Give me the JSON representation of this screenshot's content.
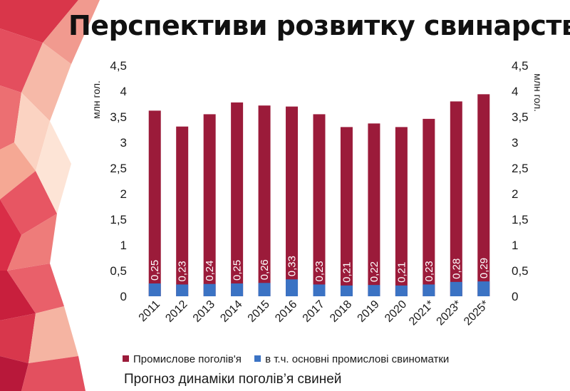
{
  "title": "Перспективи розвитку свинарства",
  "caption": "Прогноз динаміки поголів’я свиней",
  "colors": {
    "series_total": "#9b1b3a",
    "series_sows": "#3b73c4",
    "background_accent": "#e8606d"
  },
  "chart_data": {
    "type": "bar",
    "categories": [
      "2011",
      "2012",
      "2013",
      "2014",
      "2015",
      "2016",
      "2017",
      "2018",
      "2019",
      "2020",
      "2021*",
      "2023*",
      "2025*"
    ],
    "series": [
      {
        "name": "Промислове поголів'я",
        "values": [
          3.62,
          3.31,
          3.55,
          3.78,
          3.72,
          3.7,
          3.55,
          3.3,
          3.37,
          3.3,
          3.46,
          3.8,
          3.94
        ]
      },
      {
        "name": "в т.ч. основні промислові свиноматки",
        "values": [
          0.25,
          0.23,
          0.24,
          0.25,
          0.26,
          0.33,
          0.23,
          0.21,
          0.22,
          0.21,
          0.23,
          0.28,
          0.29
        ]
      }
    ],
    "data_labels": [
      "0,25",
      "0,23",
      "0,24",
      "0,25",
      "0,26",
      "0,33",
      "0,23",
      "0,21",
      "0,22",
      "0,21",
      "0,23",
      "0,28",
      "0,29"
    ],
    "y_ticks": [
      "0",
      "0,5",
      "1",
      "1,5",
      "2",
      "2,5",
      "3",
      "3,5",
      "4",
      "4,5"
    ],
    "ylabel": "млн гол.",
    "y2label": "млн гол.",
    "ylim": [
      0,
      4.5
    ],
    "legend_position": "bottom",
    "grid": false
  }
}
